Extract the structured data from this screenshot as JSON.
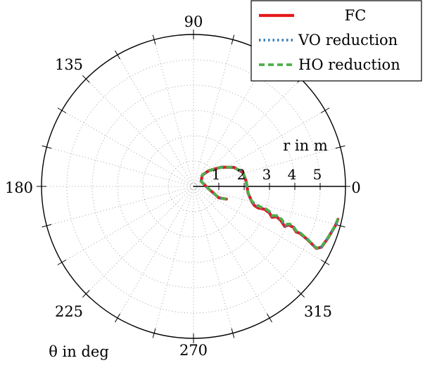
{
  "chart_data": {
    "type": "line",
    "projection": "polar",
    "theta_label": "θ in deg",
    "r_label": "r in m",
    "theta_ticks": [
      "0",
      "90",
      "135",
      "180",
      "225",
      "270",
      "315"
    ],
    "r_ticks": [
      "1",
      "2",
      "3",
      "4",
      "5"
    ],
    "r_max": 6,
    "grid": true,
    "legend_position": "top-right",
    "series": [
      {
        "name": "FC",
        "color": "#e41a1c",
        "line_style": "solid",
        "points_xy": [
          [
            1.3,
            -0.5
          ],
          [
            1.0,
            -0.45
          ],
          [
            0.6,
            -0.1
          ],
          [
            0.3,
            0.2
          ],
          [
            0.35,
            0.45
          ],
          [
            0.6,
            0.62
          ],
          [
            1.1,
            0.76
          ],
          [
            1.6,
            0.75
          ],
          [
            1.95,
            0.55
          ],
          [
            2.08,
            0.2
          ],
          [
            2.15,
            -0.25
          ],
          [
            2.3,
            -0.6
          ],
          [
            2.4,
            -0.75
          ],
          [
            2.55,
            -0.85
          ],
          [
            2.8,
            -0.9
          ],
          [
            3.0,
            -1.05
          ],
          [
            3.1,
            -1.22
          ],
          [
            3.28,
            -1.2
          ],
          [
            3.45,
            -1.35
          ],
          [
            3.6,
            -1.58
          ],
          [
            3.75,
            -1.52
          ],
          [
            3.95,
            -1.62
          ],
          [
            4.05,
            -1.8
          ],
          [
            4.2,
            -1.85
          ],
          [
            4.5,
            -2.1
          ],
          [
            4.85,
            -2.45
          ],
          [
            5.05,
            -2.4
          ],
          [
            5.3,
            -2.05
          ],
          [
            5.6,
            -1.55
          ],
          [
            5.7,
            -1.3
          ]
        ]
      },
      {
        "name": "VO reduction",
        "color": "#377eb8",
        "line_style": "dotted",
        "points_xy": [
          [
            1.3,
            -0.5
          ],
          [
            1.0,
            -0.45
          ],
          [
            0.6,
            -0.1
          ],
          [
            0.3,
            0.2
          ],
          [
            0.35,
            0.45
          ],
          [
            0.6,
            0.62
          ],
          [
            1.1,
            0.76
          ],
          [
            1.6,
            0.75
          ],
          [
            1.95,
            0.55
          ],
          [
            2.08,
            0.2
          ],
          [
            2.15,
            -0.25
          ],
          [
            2.3,
            -0.6
          ],
          [
            2.42,
            -0.72
          ],
          [
            2.6,
            -0.82
          ],
          [
            2.85,
            -0.9
          ],
          [
            3.0,
            -1.02
          ],
          [
            3.12,
            -1.18
          ],
          [
            3.3,
            -1.18
          ],
          [
            3.45,
            -1.32
          ],
          [
            3.62,
            -1.55
          ],
          [
            3.78,
            -1.5
          ],
          [
            3.95,
            -1.6
          ],
          [
            4.05,
            -1.78
          ],
          [
            4.2,
            -1.84
          ],
          [
            4.5,
            -2.1
          ],
          [
            4.85,
            -2.45
          ],
          [
            5.05,
            -2.4
          ],
          [
            5.3,
            -2.05
          ],
          [
            5.6,
            -1.55
          ],
          [
            5.7,
            -1.3
          ]
        ]
      },
      {
        "name": "HO reduction",
        "color": "#4daf4a",
        "line_style": "dashed",
        "points_xy": [
          [
            1.3,
            -0.5
          ],
          [
            1.0,
            -0.45
          ],
          [
            0.6,
            -0.1
          ],
          [
            0.3,
            0.2
          ],
          [
            0.35,
            0.45
          ],
          [
            0.6,
            0.62
          ],
          [
            1.1,
            0.76
          ],
          [
            1.6,
            0.75
          ],
          [
            1.95,
            0.55
          ],
          [
            2.08,
            0.2
          ],
          [
            2.15,
            -0.25
          ],
          [
            2.3,
            -0.58
          ],
          [
            2.45,
            -0.7
          ],
          [
            2.62,
            -0.8
          ],
          [
            2.85,
            -0.88
          ],
          [
            3.02,
            -1.0
          ],
          [
            3.12,
            -1.15
          ],
          [
            3.3,
            -1.15
          ],
          [
            3.48,
            -1.3
          ],
          [
            3.62,
            -1.5
          ],
          [
            3.8,
            -1.48
          ],
          [
            3.95,
            -1.58
          ],
          [
            4.05,
            -1.75
          ],
          [
            4.2,
            -1.82
          ],
          [
            4.5,
            -2.08
          ],
          [
            4.85,
            -2.43
          ],
          [
            5.05,
            -2.38
          ],
          [
            5.3,
            -2.03
          ],
          [
            5.6,
            -1.53
          ],
          [
            5.7,
            -1.28
          ]
        ]
      }
    ]
  }
}
